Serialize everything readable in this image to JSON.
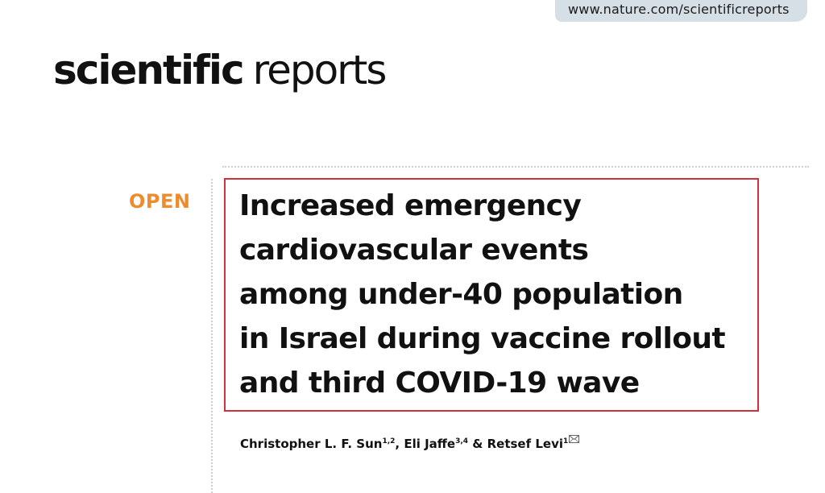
{
  "header": {
    "url": "www.nature.com/scientificreports"
  },
  "journal": {
    "name_bold": "scientific",
    "name_light": "reports"
  },
  "article": {
    "access_label": "OPEN",
    "title_lines": [
      "Increased emergency",
      "cardiovascular events",
      "among under-40 population",
      "in Israel during vaccine rollout",
      "and third COVID-19 wave"
    ],
    "authors": [
      {
        "name": "Christopher L. F. Sun",
        "affiliations": "1,2",
        "separator": ", "
      },
      {
        "name": "Eli Jaffe",
        "affiliations": "3,4",
        "separator": " & "
      },
      {
        "name": "Retsef Levi",
        "affiliations": "1",
        "separator": ""
      }
    ],
    "corresponding_icon": "envelope-icon"
  },
  "colors": {
    "open_label": "#ec8c2c",
    "highlight_box": "#d2303c",
    "url_tab": "#d6dfe6"
  }
}
